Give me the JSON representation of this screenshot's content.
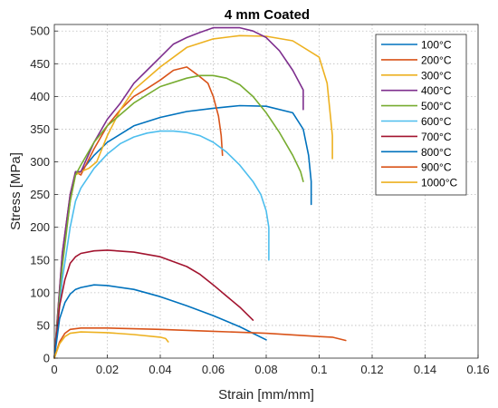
{
  "chart_data": {
    "type": "line",
    "title": "4 mm Coated",
    "xlabel": "Strain [mm/mm]",
    "ylabel": "Stress [MPa]",
    "xlim": [
      0,
      0.16
    ],
    "ylim": [
      0,
      510
    ],
    "xticks": [
      0,
      0.02,
      0.04,
      0.06,
      0.08,
      0.1,
      0.12,
      0.14,
      0.16
    ],
    "xtick_labels": [
      "0",
      "0.02",
      "0.04",
      "0.06",
      "0.08",
      "0.1",
      "0.12",
      "0.14",
      "0.16"
    ],
    "yticks": [
      0,
      50,
      100,
      150,
      200,
      250,
      300,
      350,
      400,
      450,
      500
    ],
    "ytick_labels": [
      "0",
      "50",
      "100",
      "150",
      "200",
      "250",
      "300",
      "350",
      "400",
      "450",
      "500"
    ],
    "grid": true,
    "grid_style": "dotted",
    "legend_position": "top-right",
    "series": [
      {
        "name": "100°C",
        "color": "#0072BD",
        "x": [
          0,
          0.003,
          0.006,
          0.008,
          0.01,
          0.015,
          0.02,
          0.03,
          0.04,
          0.05,
          0.06,
          0.07,
          0.08,
          0.09,
          0.094,
          0.096,
          0.097,
          0.097
        ],
        "y": [
          0,
          150,
          240,
          285,
          285,
          310,
          330,
          355,
          368,
          377,
          382,
          386,
          385,
          375,
          350,
          310,
          270,
          235
        ]
      },
      {
        "name": "200°C",
        "color": "#D95319",
        "x": [
          0,
          0.003,
          0.006,
          0.008,
          0.01,
          0.015,
          0.02,
          0.025,
          0.03,
          0.035,
          0.04,
          0.045,
          0.05,
          0.055,
          0.058,
          0.06,
          0.062,
          0.063,
          0.0635
        ],
        "y": [
          0,
          160,
          250,
          285,
          280,
          320,
          355,
          380,
          400,
          412,
          425,
          440,
          445,
          430,
          420,
          400,
          370,
          340,
          310
        ]
      },
      {
        "name": "300°C",
        "color": "#EDB120",
        "x": [
          0,
          0.003,
          0.006,
          0.008,
          0.01,
          0.013,
          0.016,
          0.02,
          0.025,
          0.03,
          0.04,
          0.05,
          0.06,
          0.07,
          0.08,
          0.09,
          0.1,
          0.103,
          0.104,
          0.105,
          0.105
        ],
        "y": [
          0,
          150,
          240,
          280,
          285,
          290,
          300,
          340,
          380,
          410,
          445,
          475,
          488,
          493,
          492,
          485,
          460,
          420,
          380,
          340,
          305
        ]
      },
      {
        "name": "400°C",
        "color": "#7E2F8E",
        "x": [
          0,
          0.003,
          0.006,
          0.008,
          0.01,
          0.015,
          0.02,
          0.025,
          0.03,
          0.035,
          0.04,
          0.045,
          0.05,
          0.055,
          0.06,
          0.065,
          0.07,
          0.075,
          0.08,
          0.085,
          0.09,
          0.094,
          0.094
        ],
        "y": [
          0,
          160,
          250,
          285,
          285,
          330,
          365,
          390,
          420,
          440,
          460,
          480,
          490,
          498,
          505,
          505,
          505,
          500,
          490,
          470,
          440,
          410,
          380
        ]
      },
      {
        "name": "500°C",
        "color": "#77AC30",
        "x": [
          0,
          0.003,
          0.006,
          0.008,
          0.01,
          0.015,
          0.02,
          0.03,
          0.04,
          0.05,
          0.055,
          0.06,
          0.065,
          0.07,
          0.075,
          0.08,
          0.085,
          0.09,
          0.093,
          0.094
        ],
        "y": [
          0,
          140,
          240,
          280,
          295,
          330,
          355,
          390,
          415,
          428,
          432,
          432,
          428,
          418,
          400,
          375,
          345,
          310,
          285,
          270
        ]
      },
      {
        "name": "600°C",
        "color": "#4DBEEE",
        "x": [
          0,
          0.003,
          0.006,
          0.008,
          0.01,
          0.015,
          0.02,
          0.025,
          0.03,
          0.035,
          0.04,
          0.045,
          0.05,
          0.055,
          0.06,
          0.065,
          0.07,
          0.075,
          0.078,
          0.08,
          0.081,
          0.081
        ],
        "y": [
          0,
          120,
          200,
          240,
          260,
          290,
          312,
          328,
          338,
          344,
          347,
          347,
          345,
          340,
          330,
          315,
          295,
          270,
          250,
          225,
          200,
          150
        ]
      },
      {
        "name": "700°C",
        "color": "#A2142F",
        "x": [
          0,
          0.002,
          0.004,
          0.006,
          0.008,
          0.01,
          0.015,
          0.02,
          0.03,
          0.04,
          0.05,
          0.055,
          0.06,
          0.065,
          0.07,
          0.075
        ],
        "y": [
          0,
          80,
          120,
          145,
          155,
          160,
          164,
          165,
          162,
          155,
          140,
          128,
          112,
          95,
          78,
          58
        ]
      },
      {
        "name": "800°C",
        "color": "#0072BD",
        "x": [
          0,
          0.002,
          0.004,
          0.006,
          0.008,
          0.01,
          0.015,
          0.02,
          0.03,
          0.04,
          0.05,
          0.06,
          0.07,
          0.075,
          0.08
        ],
        "y": [
          0,
          60,
          85,
          98,
          105,
          108,
          112,
          111,
          105,
          94,
          80,
          65,
          48,
          38,
          28
        ]
      },
      {
        "name": "900°C",
        "color": "#D95319",
        "x": [
          0,
          0.002,
          0.004,
          0.006,
          0.01,
          0.02,
          0.04,
          0.06,
          0.08,
          0.1,
          0.105,
          0.11
        ],
        "y": [
          0,
          25,
          38,
          44,
          46,
          46,
          44,
          41,
          38,
          33,
          32,
          27
        ]
      },
      {
        "name": "1000°C",
        "color": "#EDB120",
        "x": [
          0,
          0.002,
          0.004,
          0.006,
          0.01,
          0.02,
          0.03,
          0.04,
          0.042,
          0.043
        ],
        "y": [
          0,
          22,
          33,
          38,
          40,
          39,
          36,
          32,
          30,
          25
        ]
      }
    ]
  }
}
